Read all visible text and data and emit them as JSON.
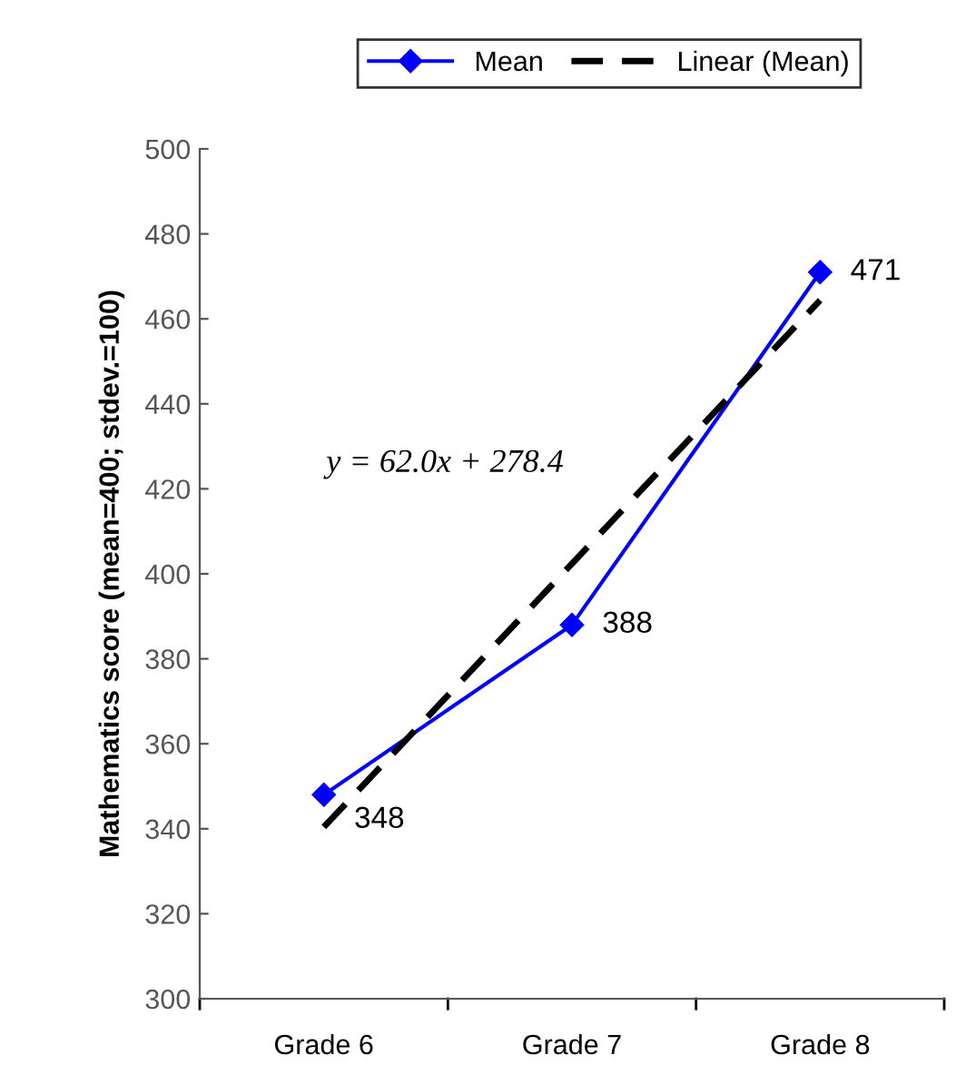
{
  "chart_data": {
    "type": "line",
    "ylabel": "Mathematics score (mean=400; stdev.=100)",
    "categories": [
      "Grade 6",
      "Grade 7",
      "Grade 8"
    ],
    "series": [
      {
        "name": "Mean",
        "color": "#0000ff",
        "values": [
          348,
          388,
          471
        ],
        "marker": "diamond",
        "line_style": "solid",
        "value_labels": [
          "348",
          "388",
          "471"
        ]
      },
      {
        "name": "Linear (Mean)",
        "color": "#000000",
        "values": [
          340.4,
          402.4,
          464.4
        ],
        "marker": "none",
        "line_style": "dashed"
      }
    ],
    "annotations": [
      "y = 62.0x + 278.4"
    ],
    "ylim": [
      300,
      500
    ],
    "yticks": [
      300,
      320,
      340,
      360,
      380,
      400,
      420,
      440,
      460,
      480,
      500
    ],
    "grid": false,
    "legend": "top"
  }
}
